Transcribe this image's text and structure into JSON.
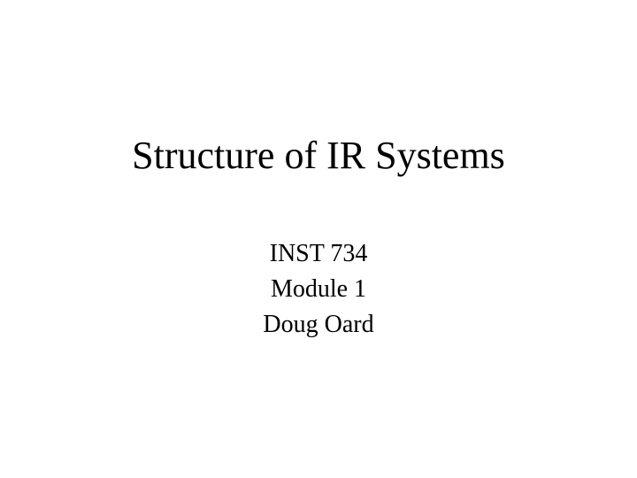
{
  "slide": {
    "title": "Structure of IR Systems",
    "course_code": "INST 734",
    "module": "Module 1",
    "author": "Doug Oard",
    "background_color": "#ffffff",
    "text_color": "#000000",
    "title_fontsize": 44,
    "subtitle_fontsize": 28,
    "font_family": "Times New Roman"
  }
}
